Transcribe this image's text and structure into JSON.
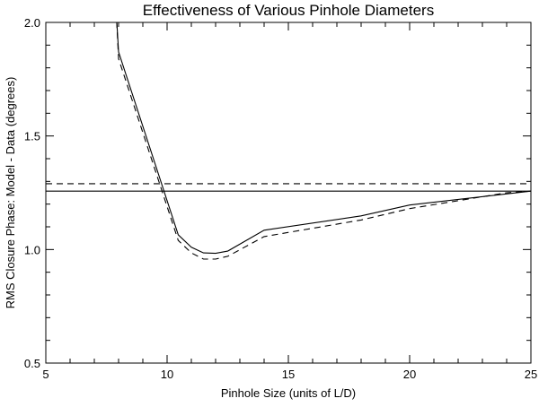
{
  "chart_data": {
    "type": "line",
    "title": "Effectiveness of Various Pinhole Diameters",
    "xlabel": "Pinhole Size (units of L/D)",
    "ylabel": "RMS Closure Phase: Model - Data (degrees)",
    "xlim": [
      5,
      25
    ],
    "ylim": [
      0.5,
      2.0
    ],
    "xticks": [
      "5",
      "10",
      "15",
      "20",
      "25"
    ],
    "yticks": [
      "0.5",
      "1.0",
      "1.5",
      "2.0"
    ],
    "x_minor_step": 1,
    "y_minor_step": 0.1,
    "grid": false,
    "series": [
      {
        "name": "solid",
        "style": "solid",
        "x": [
          7.9,
          8.0,
          10.46,
          11.0,
          11.5,
          12.0,
          12.5,
          14.0,
          18.0,
          20.0,
          25.0
        ],
        "y": [
          2.05,
          1.87,
          1.065,
          1.01,
          0.985,
          0.983,
          0.993,
          1.085,
          1.148,
          1.196,
          1.257
        ]
      },
      {
        "name": "dashed",
        "style": "dashed",
        "x": [
          7.9,
          8.0,
          10.46,
          11.0,
          11.5,
          12.0,
          12.5,
          14.0,
          18.0,
          20.0,
          24.0,
          25.0
        ],
        "y": [
          2.05,
          1.84,
          1.04,
          0.985,
          0.958,
          0.958,
          0.97,
          1.057,
          1.13,
          1.18,
          1.25,
          1.257
        ]
      },
      {
        "name": "solid-reference",
        "style": "solid",
        "x": [
          5,
          25
        ],
        "y": [
          1.257,
          1.257
        ]
      },
      {
        "name": "dashed-reference",
        "style": "dashed",
        "x": [
          5,
          25
        ],
        "y": [
          1.29,
          1.29
        ]
      }
    ]
  }
}
